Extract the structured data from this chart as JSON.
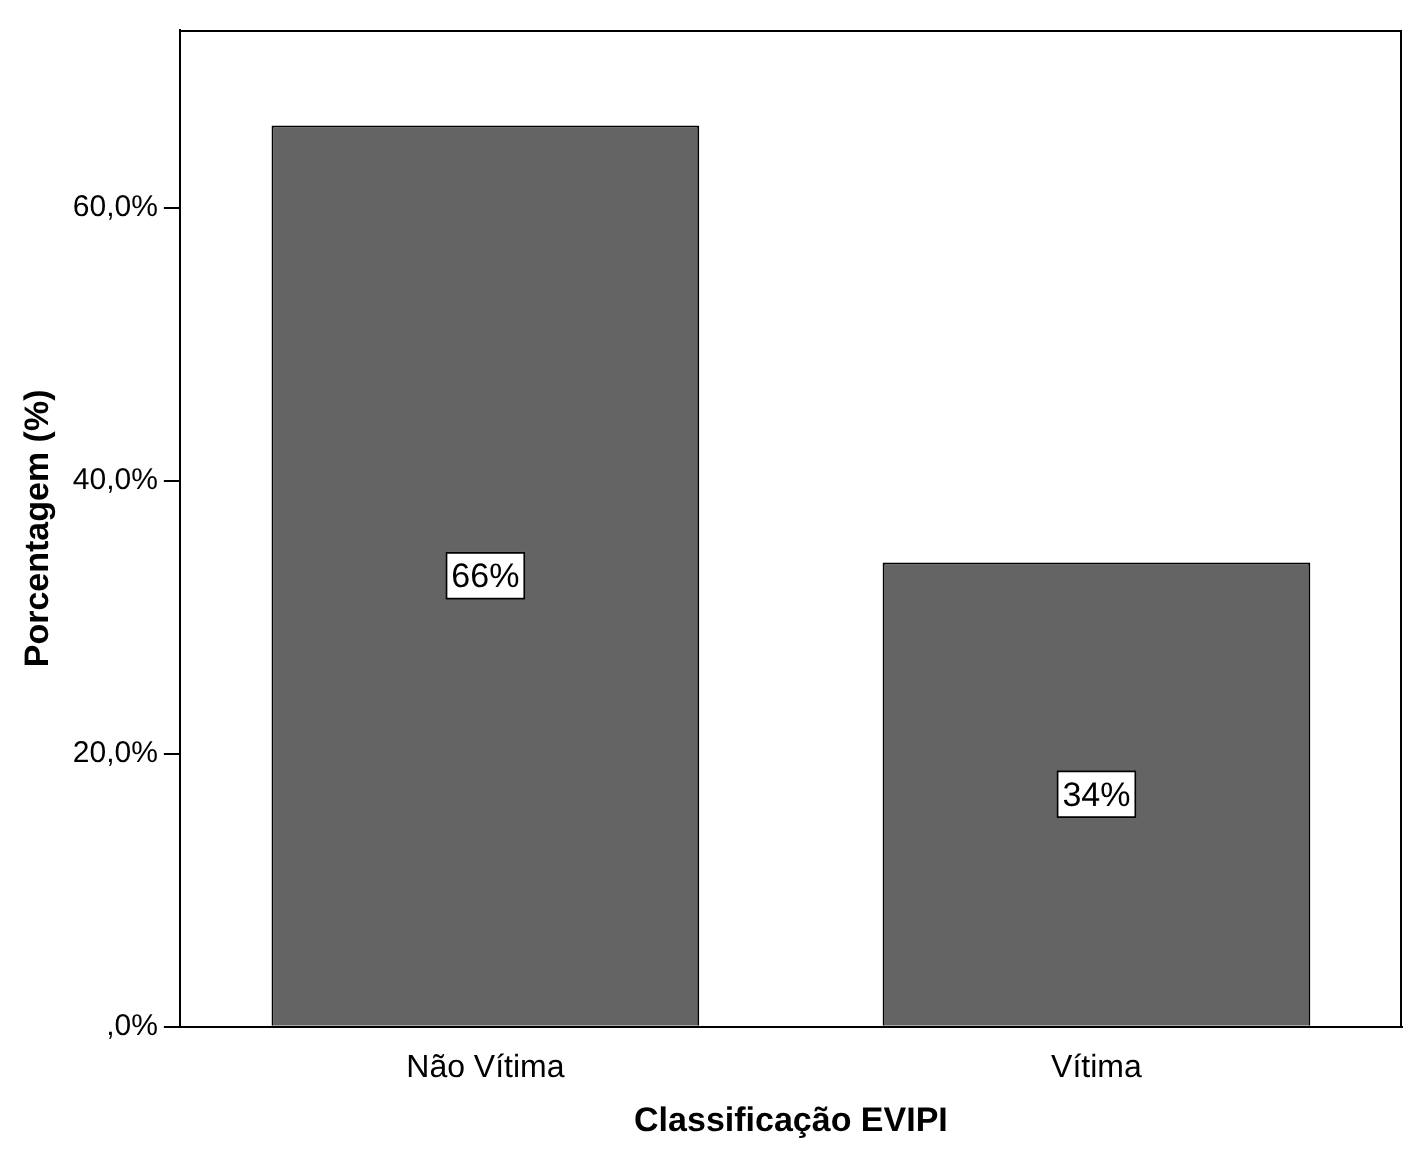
{
  "chart_data": {
    "type": "bar",
    "xlabel": "Classificação EVIPI",
    "ylabel": "Porcentagem (%)",
    "categories": [
      "Não Vítima",
      "Vítima"
    ],
    "values": [
      66,
      34
    ],
    "color": "#646464",
    "value_labels": [
      "66%",
      "34%"
    ],
    "ylim": [
      0,
      73
    ],
    "yticks": [
      {
        "value": 0,
        "label": ",0%"
      },
      {
        "value": 20,
        "label": "20,0%"
      },
      {
        "value": 40,
        "label": "40,0%"
      },
      {
        "value": 60,
        "label": "60,0%"
      }
    ],
    "grid": false
  }
}
